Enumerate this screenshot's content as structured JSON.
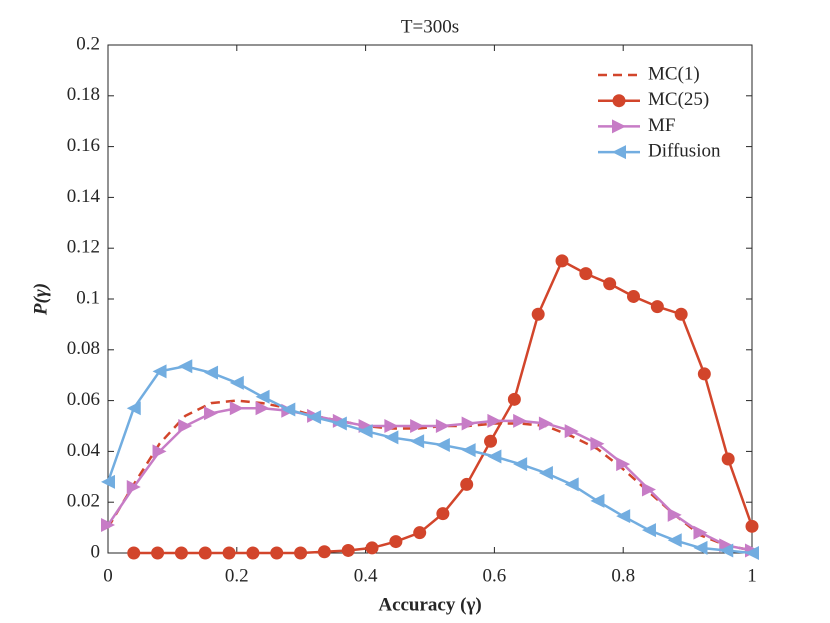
{
  "chart_data": {
    "type": "line",
    "title": "T=300s",
    "xlabel": "Accuracy (γ)",
    "ylabel": "P(γ)",
    "xlim": [
      0,
      1
    ],
    "ylim": [
      0,
      0.2
    ],
    "xticks": [
      0,
      0.2,
      0.4,
      0.6,
      0.8,
      1
    ],
    "yticks": [
      0,
      0.02,
      0.04,
      0.06,
      0.08,
      0.1,
      0.12,
      0.14,
      0.16,
      0.18,
      0.2
    ],
    "legend": "upper right",
    "series": [
      {
        "name": "MC(1)",
        "color": "#d2452b",
        "linestyle": "dashed",
        "marker": null,
        "x": [
          0,
          0.04,
          0.08,
          0.12,
          0.16,
          0.2,
          0.24,
          0.28,
          0.32,
          0.36,
          0.4,
          0.44,
          0.48,
          0.52,
          0.56,
          0.6,
          0.64,
          0.68,
          0.72,
          0.76,
          0.8,
          0.84,
          0.88,
          0.92,
          0.96,
          1
        ],
        "values": [
          0.01,
          0.027,
          0.043,
          0.054,
          0.059,
          0.06,
          0.059,
          0.057,
          0.054,
          0.052,
          0.05,
          0.049,
          0.049,
          0.05,
          0.05,
          0.051,
          0.051,
          0.05,
          0.046,
          0.041,
          0.033,
          0.024,
          0.015,
          0.007,
          0.003,
          0.001
        ]
      },
      {
        "name": "MC(25)",
        "color": "#d2452b",
        "linestyle": "solid",
        "marker": "circle",
        "x": [
          0.04,
          0.077,
          0.114,
          0.151,
          0.188,
          0.225,
          0.262,
          0.299,
          0.336,
          0.373,
          0.41,
          0.447,
          0.484,
          0.52,
          0.557,
          0.594,
          0.631,
          0.668,
          0.705,
          0.742,
          0.779,
          0.816,
          0.853,
          0.89,
          0.926,
          0.963,
          1.0
        ],
        "values": [
          0,
          0,
          0,
          0,
          0,
          0,
          0,
          0,
          0.0005,
          0.001,
          0.002,
          0.0045,
          0.008,
          0.0155,
          0.027,
          0.044,
          0.0605,
          0.094,
          0.115,
          0.11,
          0.106,
          0.101,
          0.097,
          0.094,
          0.0705,
          0.037,
          0.0105
        ]
      },
      {
        "name": "MF",
        "color": "#c77cc6",
        "linestyle": "solid",
        "marker": "triangle-right",
        "x": [
          0,
          0.04,
          0.08,
          0.12,
          0.16,
          0.2,
          0.24,
          0.28,
          0.32,
          0.36,
          0.4,
          0.44,
          0.48,
          0.52,
          0.56,
          0.6,
          0.64,
          0.68,
          0.72,
          0.76,
          0.8,
          0.84,
          0.88,
          0.92,
          0.96,
          1
        ],
        "values": [
          0.011,
          0.026,
          0.04,
          0.05,
          0.055,
          0.057,
          0.057,
          0.056,
          0.054,
          0.052,
          0.05,
          0.05,
          0.05,
          0.05,
          0.051,
          0.052,
          0.052,
          0.051,
          0.048,
          0.043,
          0.035,
          0.025,
          0.015,
          0.008,
          0.003,
          0.001
        ]
      },
      {
        "name": "Diffusion",
        "color": "#72ade0",
        "linestyle": "solid",
        "marker": "triangle-left",
        "x": [
          0,
          0.04,
          0.08,
          0.12,
          0.16,
          0.2,
          0.24,
          0.28,
          0.32,
          0.36,
          0.4,
          0.44,
          0.48,
          0.52,
          0.56,
          0.6,
          0.64,
          0.68,
          0.72,
          0.76,
          0.8,
          0.84,
          0.88,
          0.92,
          0.96,
          1
        ],
        "values": [
          0.028,
          0.057,
          0.0715,
          0.0735,
          0.071,
          0.067,
          0.0615,
          0.0565,
          0.0535,
          0.051,
          0.048,
          0.0455,
          0.044,
          0.0425,
          0.0405,
          0.038,
          0.035,
          0.0315,
          0.027,
          0.0205,
          0.0145,
          0.009,
          0.005,
          0.002,
          0.001,
          0.0
        ]
      }
    ]
  }
}
